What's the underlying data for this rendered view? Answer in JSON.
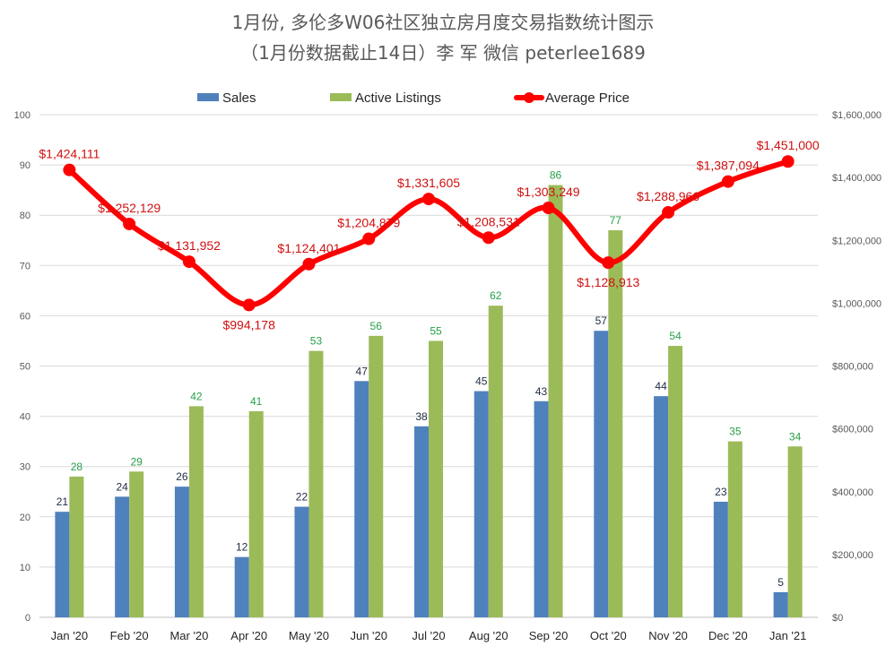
{
  "chart_data": {
    "type": "bar",
    "title": "1月份, 多伦多W06社区独立房月度交易指数统计图示",
    "subtitle": "（1月份数据截止14日）李 军  微信  peterlee1689",
    "categories": [
      "Jan '20",
      "Feb '20",
      "Mar '20",
      "Apr '20",
      "May '20",
      "Jun '20",
      "Jul '20",
      "Aug '20",
      "Sep '20",
      "Oct '20",
      "Nov '20",
      "Dec '20",
      "Jan '21"
    ],
    "series": [
      {
        "name": "Sales",
        "type": "bar",
        "axis": "left",
        "color": "#4f81bd",
        "values": [
          21,
          24,
          26,
          12,
          22,
          47,
          38,
          45,
          43,
          57,
          44,
          23,
          5
        ]
      },
      {
        "name": "Active Listings",
        "type": "bar",
        "axis": "left",
        "color": "#9bbb59",
        "values": [
          28,
          29,
          42,
          41,
          53,
          56,
          55,
          62,
          86,
          77,
          54,
          35,
          34
        ]
      },
      {
        "name": "Average Price",
        "type": "line",
        "axis": "right",
        "color": "#ff0000",
        "values": [
          1424111,
          1252129,
          1131952,
          994178,
          1124401,
          1204879,
          1331605,
          1208531,
          1303249,
          1128913,
          1288966,
          1387094,
          1451000
        ],
        "labels": [
          "$1,424,111",
          "$1,252,129",
          "$1,131,952",
          "$994,178",
          "$1,124,401",
          "$1,204,879",
          "$1,331,605",
          "$1,208,531",
          "$1,303,249",
          "$1,128,913",
          "$1,288,966",
          "$1,387,094",
          "$1,451,000"
        ]
      }
    ],
    "y_left": {
      "min": 0,
      "max": 100,
      "step": 10,
      "tick_labels": [
        "0",
        "10",
        "20",
        "30",
        "40",
        "50",
        "60",
        "70",
        "80",
        "90",
        "100"
      ]
    },
    "y_right": {
      "min": 0,
      "max": 1600000,
      "step": 200000,
      "tick_labels": [
        "$0",
        "$200,000",
        "$400,000",
        "$600,000",
        "$800,000",
        "$1,000,000",
        "$1,200,000",
        "$1,400,000",
        "$1,600,000"
      ]
    },
    "grid": true,
    "legend_position": "top"
  }
}
